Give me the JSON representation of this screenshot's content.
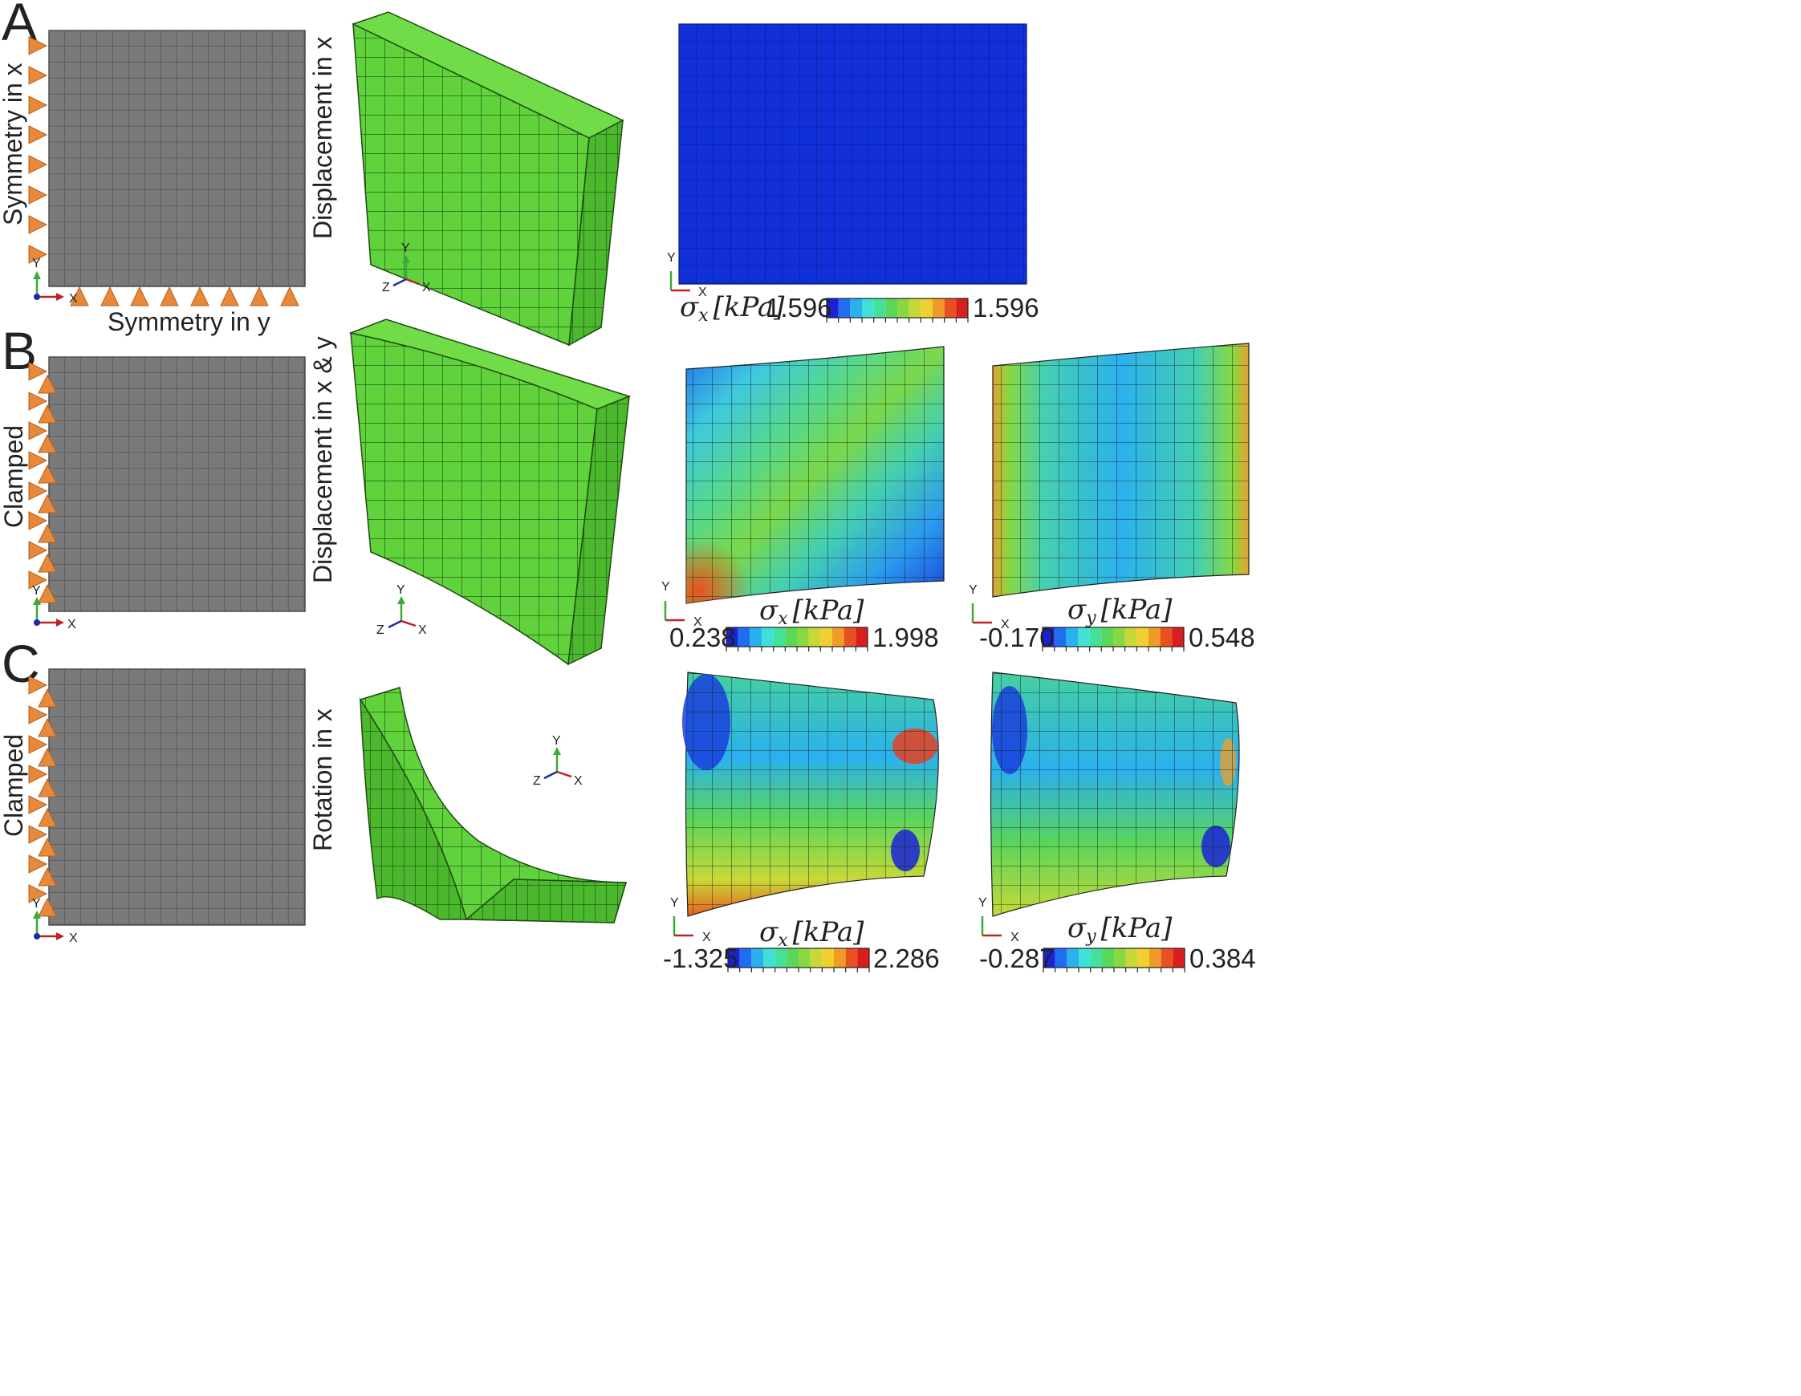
{
  "rows": [
    {
      "letter": "A",
      "left_label": "Symmetry in x",
      "bottom_label": "Symmetry in y",
      "deform_label": "Displacement in x",
      "plots": [
        {
          "symbol": "σ",
          "sub": "x",
          "unit": "[kPa]",
          "min": "1.596",
          "max": "1.596"
        }
      ]
    },
    {
      "letter": "B",
      "left_label": "Clamped",
      "deform_label": "Displacement in x & y",
      "plots": [
        {
          "symbol": "σ",
          "sub": "x",
          "unit": "[kPa]",
          "min": "0.238",
          "max": "1.998"
        },
        {
          "symbol": "σ",
          "sub": "y",
          "unit": "[kPa]",
          "min": "-0.170",
          "max": "0.548"
        }
      ]
    },
    {
      "letter": "C",
      "left_label": "Clamped",
      "deform_label": "Rotation in x",
      "plots": [
        {
          "symbol": "σ",
          "sub": "x",
          "unit": "[kPa]",
          "min": "-1.325",
          "max": "2.286"
        },
        {
          "symbol": "σ",
          "sub": "y",
          "unit": "[kPa]",
          "min": "-0.287",
          "max": "0.384"
        }
      ]
    }
  ],
  "axis_labels": {
    "x": "X",
    "y": "Y",
    "z": "Z"
  },
  "colors": {
    "mesh_gray": "#7a7a7a",
    "mesh_green": "#5fd23c",
    "bc_orange": "#e8893a",
    "plot_blue": "#1230d8",
    "colorbar": [
      "#1a22d8",
      "#1f6ef0",
      "#2bb0ee",
      "#3fe0d8",
      "#45e09a",
      "#5ad65a",
      "#8ad840",
      "#c8d838",
      "#f0d030",
      "#f09a28",
      "#e85020",
      "#d81e1e"
    ]
  }
}
